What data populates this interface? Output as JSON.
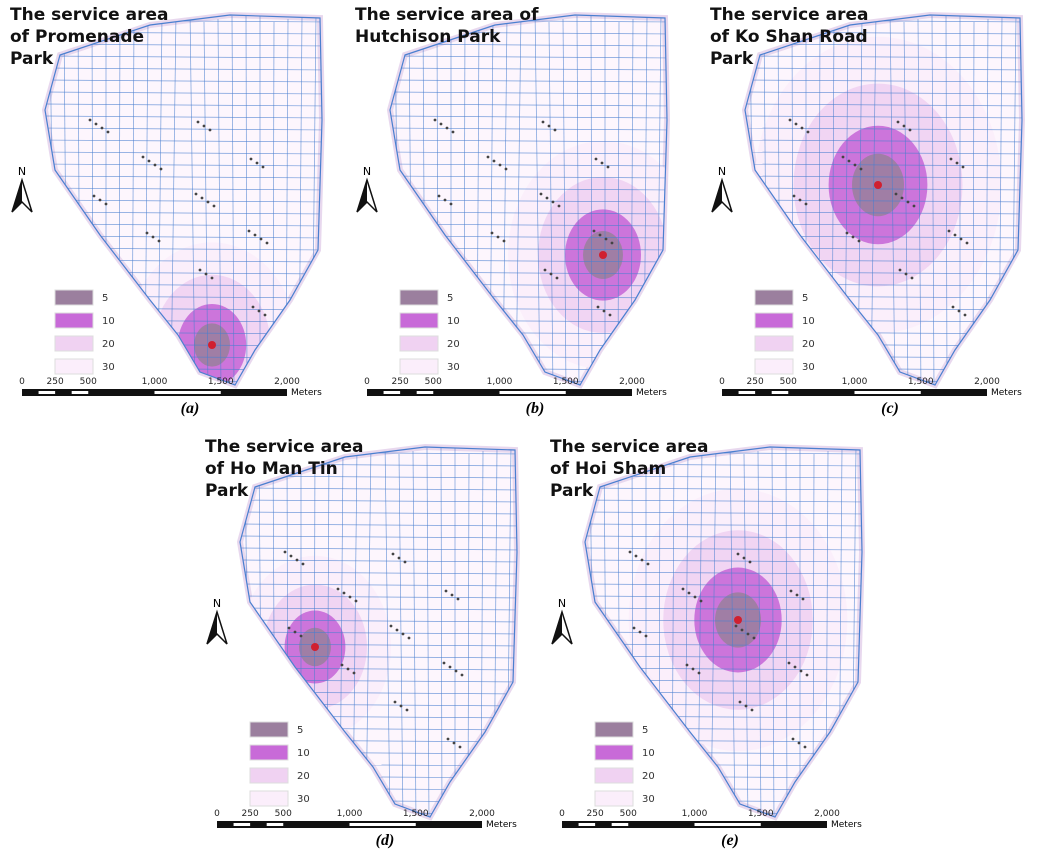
{
  "panels": [
    {
      "title": [
        "The service area",
        "of Promenade",
        "Park"
      ],
      "north": "N",
      "legend": [
        "5",
        "10",
        "20",
        "30"
      ],
      "scale": [
        "0",
        "250",
        "500",
        "1,000",
        "1,500",
        "2,000"
      ],
      "unit": "Meters",
      "caption": "(a)"
    },
    {
      "title": [
        "The service area of",
        "Hutchison Park"
      ],
      "north": "N",
      "legend": [
        "5",
        "10",
        "20",
        "30"
      ],
      "scale": [
        "0",
        "250",
        "500",
        "1,000",
        "1,500",
        "2,000"
      ],
      "unit": "Meters",
      "caption": "(b)"
    },
    {
      "title": [
        "The service area",
        "of Ko Shan Road",
        "Park"
      ],
      "north": "N",
      "legend": [
        "5",
        "10",
        "20",
        "30"
      ],
      "scale": [
        "0",
        "250",
        "500",
        "1,000",
        "1,500",
        "2,000"
      ],
      "unit": "Meters",
      "caption": "(c)"
    },
    {
      "title": [
        "The service area",
        "of Ho Man Tin",
        "Park"
      ],
      "north": "N",
      "legend": [
        "5",
        "10",
        "20",
        "30"
      ],
      "scale": [
        "0",
        "250",
        "500",
        "1,000",
        "1,500",
        "2,000"
      ],
      "unit": "Meters",
      "caption": "(d)"
    },
    {
      "title": [
        "The service area",
        "of Hoi Sham",
        "Park"
      ],
      "north": "N",
      "legend": [
        "5",
        "10",
        "20",
        "30"
      ],
      "scale": [
        "0",
        "250",
        "500",
        "1,000",
        "1,500",
        "2,000"
      ],
      "unit": "Meters",
      "caption": "(e)"
    }
  ]
}
